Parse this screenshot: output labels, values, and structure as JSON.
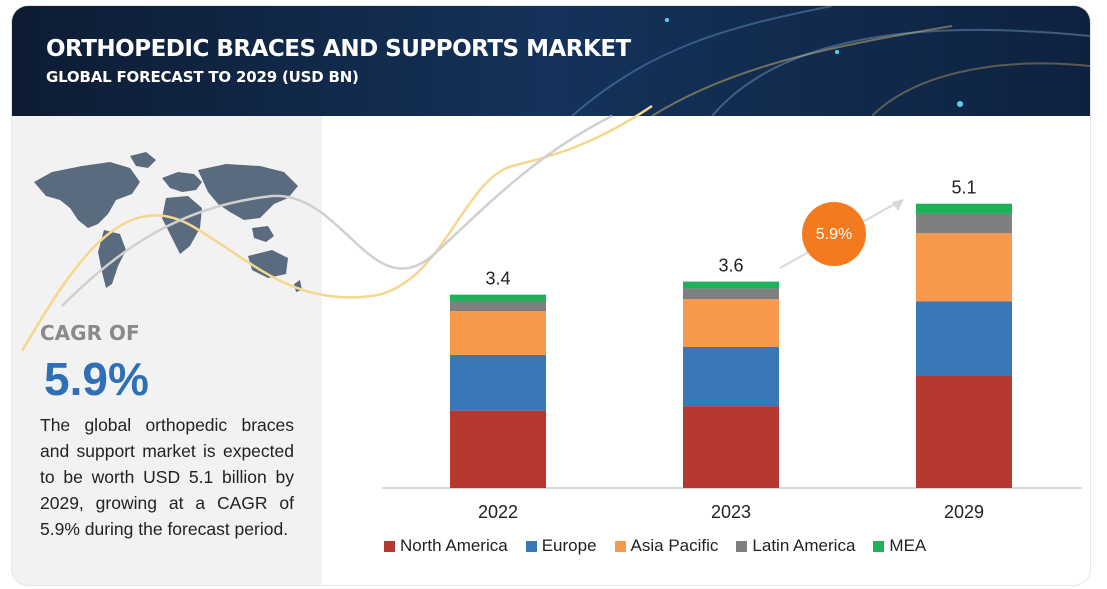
{
  "header": {
    "title": "ORTHOPEDIC BRACES AND SUPPORTS MARKET",
    "subtitle": "GLOBAL FORECAST TO 2029 (USD BN)"
  },
  "left_panel": {
    "cagr_label": "CAGR OF",
    "cagr_value": "5.9%",
    "description": "The global orthopedic braces and support market is expected to be worth USD 5.1 billion by 2029, growing at a CAGR of 5.9% during the forecast period."
  },
  "growth_badge": "5.9%",
  "colors": {
    "north_america": "#b5392f",
    "europe": "#3878b8",
    "asia_pacific": "#f7994a",
    "latin_america": "#7f7f7f",
    "mea": "#1fb05a",
    "badge": "#f47a20",
    "cagr_value": "#2e6fb5"
  },
  "chart_data": {
    "type": "bar",
    "stacked": true,
    "categories": [
      "2022",
      "2023",
      "2029"
    ],
    "totals": [
      "3.4",
      "3.6",
      "5.1"
    ],
    "series": [
      {
        "name": "North America",
        "values": [
          1.36,
          1.44,
          1.97
        ]
      },
      {
        "name": "Europe",
        "values": [
          0.98,
          1.04,
          1.31
        ]
      },
      {
        "name": "Asia Pacific",
        "values": [
          0.77,
          0.84,
          1.2
        ]
      },
      {
        "name": "Latin America",
        "values": [
          0.17,
          0.19,
          0.34
        ]
      },
      {
        "name": "MEA",
        "values": [
          0.12,
          0.12,
          0.18
        ]
      }
    ],
    "ylim": [
      0,
      5.1
    ],
    "grid": false,
    "legend_position": "bottom"
  }
}
